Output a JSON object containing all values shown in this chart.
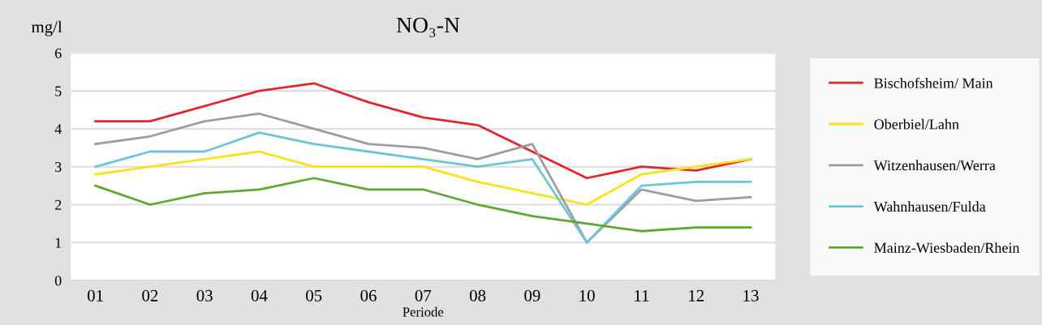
{
  "chart_data": {
    "type": "line",
    "title": "NO₃-N",
    "ylabel": "mg/l",
    "xlabel": "Periode",
    "categories": [
      "01",
      "02",
      "03",
      "04",
      "05",
      "06",
      "07",
      "08",
      "09",
      "10",
      "11",
      "12",
      "13"
    ],
    "series": [
      {
        "name": "Bischofsheim/ Main",
        "color": "#e3262a",
        "values": [
          4.2,
          4.2,
          4.6,
          5.0,
          5.2,
          4.7,
          4.3,
          4.1,
          3.4,
          2.7,
          3.0,
          2.9,
          3.2
        ]
      },
      {
        "name": "Oberbiel/Lahn",
        "color": "#f7e21b",
        "values": [
          2.8,
          3.0,
          3.2,
          3.4,
          3.0,
          3.0,
          3.0,
          2.6,
          2.3,
          2.0,
          2.8,
          3.0,
          3.2
        ]
      },
      {
        "name": "Witzenhausen/Werra",
        "color": "#9d9d9d",
        "values": [
          3.6,
          3.8,
          4.2,
          4.4,
          4.0,
          3.6,
          3.5,
          3.2,
          3.6,
          1.0,
          2.4,
          2.1,
          2.2
        ]
      },
      {
        "name": "Wahnhausen/Fulda",
        "color": "#6cc5d6",
        "values": [
          3.0,
          3.4,
          3.4,
          3.9,
          3.6,
          3.4,
          3.2,
          3.0,
          3.2,
          1.0,
          2.5,
          2.6,
          2.6
        ]
      },
      {
        "name": "Mainz-Wiesbaden/Rhein",
        "color": "#5fa82e",
        "values": [
          2.5,
          2.0,
          2.3,
          2.4,
          2.7,
          2.4,
          2.4,
          2.0,
          1.7,
          1.5,
          1.3,
          1.4,
          1.4
        ]
      }
    ],
    "ylim": [
      0,
      6
    ],
    "yticks": [
      0,
      1,
      2,
      3,
      4,
      5,
      6
    ],
    "grid": "y",
    "legend": "right",
    "marker": "none",
    "line_style": "solid"
  }
}
